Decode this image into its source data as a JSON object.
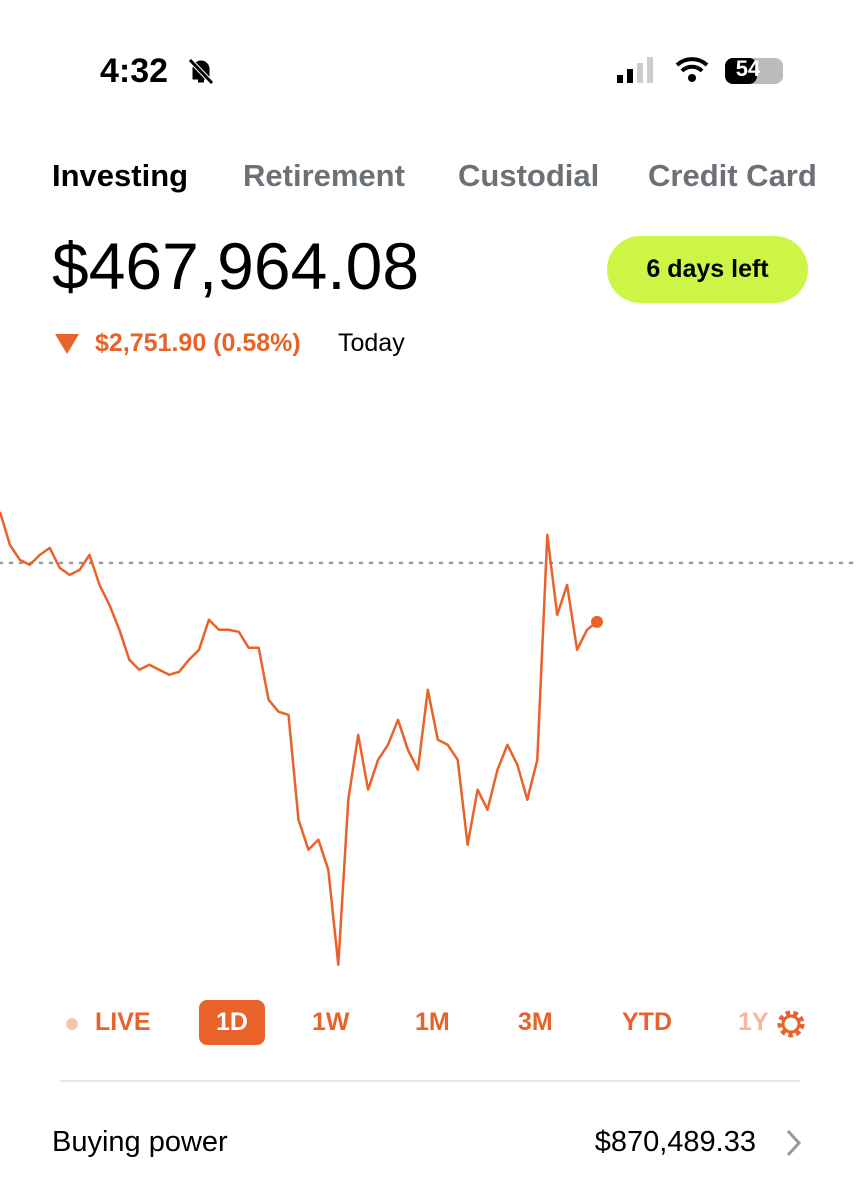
{
  "status_bar": {
    "time": "4:32",
    "battery": "54"
  },
  "tabs": [
    "Investing",
    "Retirement",
    "Custodial",
    "Credit Card"
  ],
  "balance": "$467,964.08",
  "promo_button": "6 days left",
  "change": {
    "amount": "$2,751.90 (0.58%)",
    "period": "Today"
  },
  "chart_data": {
    "type": "line",
    "color": "#e8622a",
    "previous_close": 470715.98,
    "ylim": [
      451250,
      473650
    ],
    "values": [
      473095,
      471556,
      470856,
      470623,
      471089,
      471416,
      470483,
      470156,
      470390,
      471089,
      469690,
      468757,
      467591,
      466192,
      465726,
      465959,
      465726,
      465492,
      465632,
      466192,
      466658,
      468058,
      467591,
      467591,
      467498,
      466752,
      466752,
      464326,
      463767,
      463627,
      458730,
      457330,
      457797,
      456398,
      451967,
      459662,
      462694,
      460129,
      461528,
      462228,
      463394,
      461994,
      461062,
      464793,
      462461,
      462228,
      461528,
      457564,
      460129,
      459196,
      461062,
      462228,
      461295,
      459662,
      461528,
      472022,
      468291,
      469690,
      466658,
      467591,
      467964.08
    ]
  },
  "ranges": [
    "LIVE",
    "1D",
    "1W",
    "1M",
    "3M",
    "YTD",
    "1Y"
  ],
  "buying_power": {
    "label": "Buying power",
    "value": "$870,489.33"
  }
}
